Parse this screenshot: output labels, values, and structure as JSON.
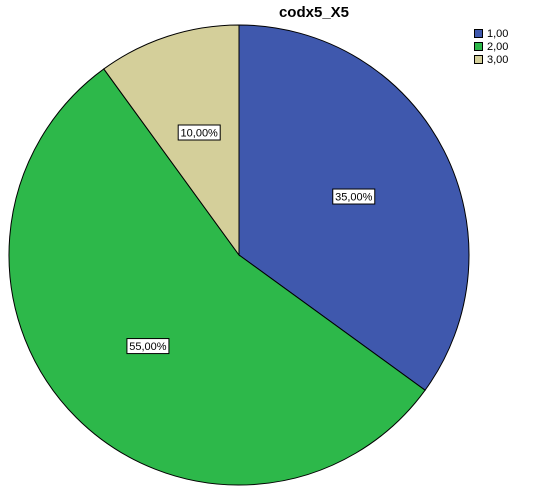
{
  "chart_data": {
    "type": "pie",
    "title": "codx5_X5",
    "categories": [
      "1,00",
      "2,00",
      "3,00"
    ],
    "values": [
      35,
      55,
      10
    ],
    "labels": [
      "35,00%",
      "55,00%",
      "10,00%"
    ],
    "colors": [
      "#3f58ad",
      "#2db84a",
      "#d4cf9a"
    ],
    "legend_position": "top-right",
    "start_angle": "12 o'clock, clockwise"
  }
}
